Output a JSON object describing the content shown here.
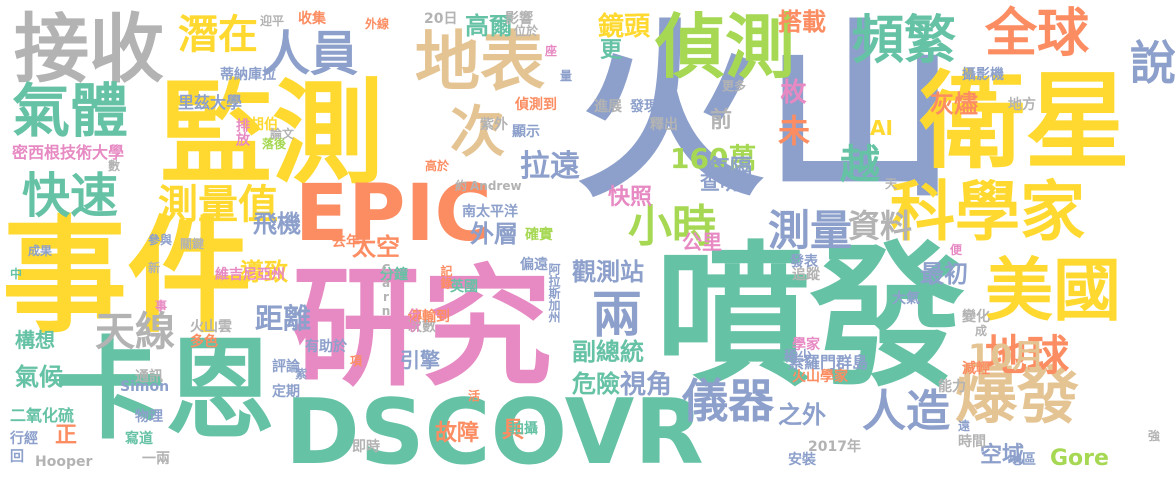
{
  "colors": {
    "teal": "#66c2a5",
    "orange": "#fc8d62",
    "blue": "#8da0cb",
    "pink": "#e78ac3",
    "green": "#a6d854",
    "yellow": "#ffd92f",
    "tan": "#e5c494",
    "gray": "#b3b3b3"
  },
  "words": [
    {
      "text": "火山",
      "color": "#8da0cb"
    },
    {
      "text": "噴發",
      "color": "#66c2a5"
    },
    {
      "text": "事件",
      "color": "#ffd92f"
    },
    {
      "text": "監測",
      "color": "#ffd92f"
    },
    {
      "text": "研究",
      "color": "#e78ac3"
    },
    {
      "text": "卡恩",
      "color": "#66c2a5"
    },
    {
      "text": "DSCOVR",
      "color": "#66c2a5"
    },
    {
      "text": "衛星",
      "color": "#ffd92f"
    },
    {
      "text": "EPIC",
      "color": "#fc8d62"
    },
    {
      "text": "接收",
      "color": "#b3b3b3"
    },
    {
      "text": "地表",
      "color": "#e5c494"
    },
    {
      "text": "偵測",
      "color": "#a6d854"
    },
    {
      "text": "科學家",
      "color": "#ffd92f"
    },
    {
      "text": "美國",
      "color": "#ffd92f"
    },
    {
      "text": "爆發",
      "color": "#e5c494"
    },
    {
      "text": "全球",
      "color": "#fc8d62"
    },
    {
      "text": "說",
      "color": "#8da0cb"
    },
    {
      "text": "頻繁",
      "color": "#66c2a5"
    },
    {
      "text": "氣體",
      "color": "#66c2a5"
    },
    {
      "text": "潛在",
      "color": "#ffd92f"
    },
    {
      "text": "人員",
      "color": "#8da0cb"
    },
    {
      "text": "快速",
      "color": "#66c2a5"
    },
    {
      "text": "測量值",
      "color": "#ffd92f"
    },
    {
      "text": "次",
      "color": "#e5c494"
    },
    {
      "text": "小時",
      "color": "#a6d854"
    },
    {
      "text": "測量",
      "color": "#8da0cb"
    },
    {
      "text": "資料",
      "color": "#b3b3b3"
    },
    {
      "text": "兩",
      "color": "#8da0cb"
    },
    {
      "text": "儀器",
      "color": "#8da0cb"
    },
    {
      "text": "人造",
      "color": "#8da0cb"
    },
    {
      "text": "地球",
      "color": "#fc8d62"
    },
    {
      "text": "10月",
      "color": "#e5c494"
    },
    {
      "text": "天線",
      "color": "#b3b3b3"
    },
    {
      "text": "越",
      "color": "#66c2a5"
    },
    {
      "text": "未",
      "color": "#fc8d62"
    },
    {
      "text": "160萬",
      "color": "#a6d854"
    },
    {
      "text": "拉遠",
      "color": "#8da0cb"
    },
    {
      "text": "鏡頭",
      "color": "#ffd92f"
    },
    {
      "text": "高爾",
      "color": "#66c2a5"
    },
    {
      "text": "搭載",
      "color": "#fc8d62"
    },
    {
      "text": "更",
      "color": "#66c2a5"
    },
    {
      "text": "前",
      "color": "#b3b3b3"
    },
    {
      "text": "枚",
      "color": "#e78ac3"
    },
    {
      "text": "灰燼",
      "color": "#fc8d62"
    },
    {
      "text": "AI",
      "color": "#ffd92f"
    },
    {
      "text": "每隔",
      "color": "#8da0cb"
    },
    {
      "text": "查明",
      "color": "#8da0cb"
    },
    {
      "text": "快照",
      "color": "#e78ac3"
    },
    {
      "text": "飛機",
      "color": "#8da0cb"
    },
    {
      "text": "太空",
      "color": "#fc8d62"
    },
    {
      "text": "外層",
      "color": "#8da0cb"
    },
    {
      "text": "公里",
      "color": "#e78ac3"
    },
    {
      "text": "導致",
      "color": "#ffd92f"
    },
    {
      "text": "距離",
      "color": "#8da0cb"
    },
    {
      "text": "觀測站",
      "color": "#8da0cb"
    },
    {
      "text": "最初",
      "color": "#8da0cb"
    },
    {
      "text": "副總統",
      "color": "#66c2a5"
    },
    {
      "text": "危險",
      "color": "#66c2a5"
    },
    {
      "text": "視角",
      "color": "#8da0cb"
    },
    {
      "text": "引擎",
      "color": "#8da0cb"
    },
    {
      "text": "之外",
      "color": "#8da0cb"
    },
    {
      "text": "故障",
      "color": "#fc8d62"
    },
    {
      "text": "具",
      "color": "#fc8d62"
    },
    {
      "text": "空域",
      "color": "#8da0cb"
    },
    {
      "text": "Gore",
      "color": "#a6d854"
    },
    {
      "text": "構想",
      "color": "#66c2a5"
    },
    {
      "text": "氣候",
      "color": "#66c2a5"
    },
    {
      "text": "正",
      "color": "#fc8d62"
    },
    {
      "text": "密西根技術大學",
      "color": "#e78ac3"
    },
    {
      "text": "蒂納庫拉",
      "color": "#8da0cb"
    },
    {
      "text": "里茲大學",
      "color": "#8da0cb"
    },
    {
      "text": "胡伯",
      "color": "#ffd92f"
    },
    {
      "text": "紫外",
      "color": "#b3b3b3"
    },
    {
      "text": "偵測到",
      "color": "#fc8d62"
    },
    {
      "text": "論文",
      "color": "#b3b3b3"
    },
    {
      "text": "排放",
      "color": "#e78ac3"
    },
    {
      "text": "落後",
      "color": "#a6d854"
    },
    {
      "text": "高於",
      "color": "#fc8d62"
    },
    {
      "text": "南太平洋",
      "color": "#8da0cb"
    },
    {
      "text": "Andrew",
      "color": "#b3b3b3"
    },
    {
      "text": "去年",
      "color": "#fc8d62"
    },
    {
      "text": "維吉尼亞州",
      "color": "#e78ac3"
    },
    {
      "text": "分鐘",
      "color": "#66c2a5"
    },
    {
      "text": "Carn",
      "color": "#b3b3b3"
    },
    {
      "text": "英國",
      "color": "#66c2a5"
    },
    {
      "text": "記錄",
      "color": "#fc8d62"
    },
    {
      "text": "阿拉斯加州",
      "color": "#8da0cb"
    },
    {
      "text": "索羅門群島",
      "color": "#8da0cb"
    },
    {
      "text": "火山學家",
      "color": "#fc8d62"
    },
    {
      "text": "火山雲",
      "color": "#b3b3b3"
    },
    {
      "text": "多色",
      "color": "#fc8d62"
    },
    {
      "text": "Simon",
      "color": "#8da0cb"
    },
    {
      "text": "二氧化硫",
      "color": "#66c2a5"
    },
    {
      "text": "Hooper",
      "color": "#b3b3b3"
    },
    {
      "text": "2017年",
      "color": "#b3b3b3"
    },
    {
      "text": "20日",
      "color": "#b3b3b3"
    },
    {
      "text": "收集",
      "color": "#fc8d62"
    },
    {
      "text": "影響",
      "color": "#b3b3b3"
    },
    {
      "text": "攝影機",
      "color": "#8da0cb"
    },
    {
      "text": "地方",
      "color": "#b3b3b3"
    },
    {
      "text": "發現",
      "color": "#8da0cb"
    },
    {
      "text": "進展",
      "color": "#b3b3b3"
    },
    {
      "text": "釋出",
      "color": "#b3b3b3"
    },
    {
      "text": "顯示",
      "color": "#8da0cb"
    },
    {
      "text": "能力",
      "color": "#b3b3b3"
    },
    {
      "text": "減輕",
      "color": "#fc8d62"
    },
    {
      "text": "稀少",
      "color": "#8da0cb"
    },
    {
      "text": "安裝",
      "color": "#8da0cb"
    },
    {
      "text": "地區",
      "color": "#8da0cb"
    },
    {
      "text": "時間",
      "color": "#b3b3b3"
    },
    {
      "text": "變化",
      "color": "#b3b3b3"
    },
    {
      "text": "大氣",
      "color": "#8da0cb"
    },
    {
      "text": "追蹤",
      "color": "#b3b3b3"
    },
    {
      "text": "發表",
      "color": "#8da0cb"
    },
    {
      "text": "學家",
      "color": "#e78ac3"
    },
    {
      "text": "拍攝",
      "color": "#66c2a5"
    },
    {
      "text": "寫道",
      "color": "#66c2a5"
    },
    {
      "text": "即時",
      "color": "#b3b3b3"
    },
    {
      "text": "一兩",
      "color": "#b3b3b3"
    },
    {
      "text": "定期",
      "color": "#8da0cb"
    },
    {
      "text": "通訊",
      "color": "#b3b3b3"
    },
    {
      "text": "物理",
      "color": "#8da0cb"
    },
    {
      "text": "行經",
      "color": "#8da0cb"
    },
    {
      "text": "回",
      "color": "#8da0cb"
    },
    {
      "text": "有助於",
      "color": "#8da0cb"
    },
    {
      "text": "評論",
      "color": "#8da0cb"
    },
    {
      "text": "次數",
      "color": "#b3b3b3"
    },
    {
      "text": "傳輸到",
      "color": "#fc8d62"
    },
    {
      "text": "分析",
      "color": "#e78ac3"
    },
    {
      "text": "關鍵",
      "color": "#b3b3b3"
    },
    {
      "text": "成果",
      "color": "#8da0cb"
    },
    {
      "text": "參與",
      "color": "#8da0cb"
    },
    {
      "text": "確實",
      "color": "#a6d854"
    },
    {
      "text": "偏遠",
      "color": "#8da0cb"
    },
    {
      "text": "數",
      "color": "#b3b3b3"
    },
    {
      "text": "新",
      "color": "#b3b3b3"
    },
    {
      "text": "中",
      "color": "#66c2a5"
    },
    {
      "text": "事",
      "color": "#e78ac3"
    },
    {
      "text": "迎平",
      "color": "#b3b3b3"
    },
    {
      "text": "外線",
      "color": "#fc8d62"
    },
    {
      "text": "位於",
      "color": "#b3b3b3"
    },
    {
      "text": "量",
      "color": "#8da0cb"
    },
    {
      "text": "座",
      "color": "#e78ac3"
    },
    {
      "text": "更多",
      "color": "#b3b3b3"
    },
    {
      "text": "約",
      "color": "#b3b3b3"
    },
    {
      "text": "天",
      "color": "#b3b3b3"
    },
    {
      "text": "便",
      "color": "#e78ac3"
    },
    {
      "text": "成",
      "color": "#b3b3b3"
    },
    {
      "text": "遠",
      "color": "#8da0cb"
    },
    {
      "text": "強",
      "color": "#b3b3b3"
    },
    {
      "text": "項",
      "color": "#fc8d62"
    },
    {
      "text": "活",
      "color": "#fc8d62"
    },
    {
      "text": "紫",
      "color": "#8da0cb"
    }
  ]
}
